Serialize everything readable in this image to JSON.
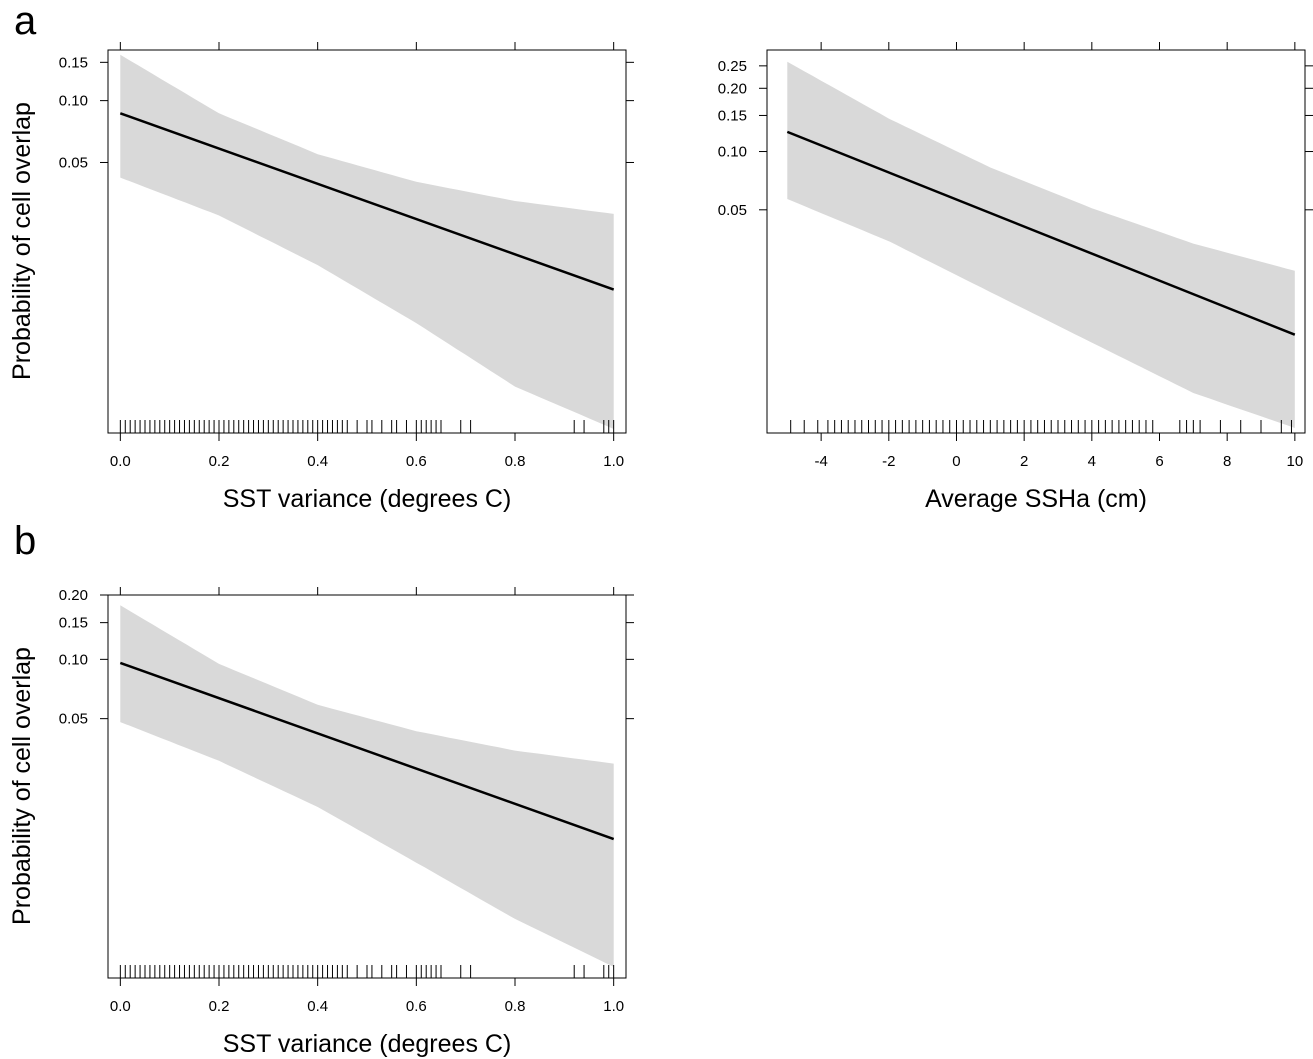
{
  "panel_letters": [
    "a",
    "b"
  ],
  "chart_data": [
    {
      "type": "line",
      "panel_letter": "a",
      "xlabel": "SST variance (degrees C)",
      "ylabel": "Probability of cell overlap",
      "y_scale": "logit",
      "xlim": [
        -0.025,
        1.025
      ],
      "ylim": [
        0.002,
        0.17
      ],
      "x_ticks": [
        0.0,
        0.2,
        0.4,
        0.6,
        0.8,
        1.0
      ],
      "x_tick_labels": [
        "0.0",
        "0.2",
        "0.4",
        "0.6",
        "0.8",
        "1.0"
      ],
      "y_ticks": [
        0.05,
        0.1,
        0.15
      ],
      "y_tick_labels": [
        "0.05",
        "0.10",
        "0.15"
      ],
      "fit": {
        "x": [
          0.0,
          1.0
        ],
        "y": [
          0.087,
          0.0112
        ]
      },
      "ci_lower": {
        "x": [
          0.0,
          0.2,
          0.4,
          0.6,
          0.8,
          1.0
        ],
        "y": [
          0.042,
          0.027,
          0.015,
          0.0075,
          0.0035,
          0.0021
        ]
      },
      "ci_upper": {
        "x": [
          0.0,
          0.2,
          0.4,
          0.6,
          0.8,
          1.0
        ],
        "y": [
          0.162,
          0.087,
          0.055,
          0.04,
          0.032,
          0.0275
        ]
      },
      "rug": [
        0.0,
        0.01,
        0.02,
        0.03,
        0.04,
        0.05,
        0.06,
        0.07,
        0.08,
        0.09,
        0.1,
        0.11,
        0.12,
        0.13,
        0.14,
        0.15,
        0.16,
        0.17,
        0.18,
        0.19,
        0.2,
        0.21,
        0.22,
        0.23,
        0.24,
        0.25,
        0.26,
        0.27,
        0.28,
        0.29,
        0.3,
        0.31,
        0.32,
        0.33,
        0.34,
        0.35,
        0.36,
        0.37,
        0.38,
        0.39,
        0.4,
        0.41,
        0.42,
        0.43,
        0.44,
        0.45,
        0.46,
        0.48,
        0.5,
        0.51,
        0.53,
        0.55,
        0.56,
        0.58,
        0.6,
        0.61,
        0.62,
        0.63,
        0.64,
        0.65,
        0.69,
        0.71,
        0.92,
        0.94,
        0.98,
        0.99,
        1.0
      ]
    },
    {
      "type": "line",
      "xlabel": "Average SSHa (cm)",
      "ylabel": "",
      "y_scale": "logit",
      "xlim": [
        -5.6,
        10.3
      ],
      "ylim": [
        0.003,
        0.29
      ],
      "x_ticks": [
        -4,
        -2,
        0,
        2,
        4,
        6,
        8,
        10
      ],
      "x_tick_labels": [
        "-4",
        "-2",
        "0",
        "2",
        "4",
        "6",
        "8",
        "10"
      ],
      "y_ticks": [
        0.05,
        0.1,
        0.15,
        0.2,
        0.25
      ],
      "y_tick_labels": [
        "0.05",
        "0.10",
        "0.15",
        "0.20",
        "0.25"
      ],
      "fit": {
        "x": [
          -5.0,
          10.0
        ],
        "y": [
          0.125,
          0.0105
        ]
      },
      "ci_lower": {
        "x": [
          -5,
          -2,
          1,
          4,
          7,
          10
        ],
        "y": [
          0.057,
          0.034,
          0.018,
          0.0095,
          0.005,
          0.0032
        ]
      },
      "ci_upper": {
        "x": [
          -5,
          -2,
          1,
          4,
          7,
          10
        ],
        "y": [
          0.26,
          0.145,
          0.083,
          0.051,
          0.033,
          0.0235
        ]
      },
      "rug": [
        -4.9,
        -4.5,
        -4.1,
        -3.8,
        -3.6,
        -3.4,
        -3.2,
        -3.0,
        -2.8,
        -2.6,
        -2.4,
        -2.2,
        -2.0,
        -1.8,
        -1.6,
        -1.4,
        -1.2,
        -1.0,
        -0.8,
        -0.6,
        -0.4,
        -0.2,
        0.0,
        0.2,
        0.4,
        0.6,
        0.8,
        1.0,
        1.2,
        1.4,
        1.6,
        1.8,
        2.0,
        2.2,
        2.4,
        2.6,
        2.8,
        3.0,
        3.2,
        3.4,
        3.6,
        3.8,
        4.0,
        4.2,
        4.4,
        4.6,
        4.8,
        5.0,
        5.2,
        5.4,
        5.6,
        5.8,
        6.6,
        6.8,
        7.0,
        7.2,
        7.8,
        8.4,
        9.0,
        9.6,
        9.9
      ]
    },
    {
      "type": "line",
      "panel_letter": "b",
      "xlabel": "SST variance (degrees C)",
      "ylabel": "Probability of cell overlap",
      "y_scale": "logit",
      "xlim": [
        -0.025,
        1.025
      ],
      "ylim": [
        0.002,
        0.2
      ],
      "x_ticks": [
        0.0,
        0.2,
        0.4,
        0.6,
        0.8,
        1.0
      ],
      "x_tick_labels": [
        "0.0",
        "0.2",
        "0.4",
        "0.6",
        "0.8",
        "1.0"
      ],
      "y_ticks": [
        0.05,
        0.1,
        0.15,
        0.2
      ],
      "y_tick_labels": [
        "0.05",
        "0.10",
        "0.15",
        "0.20"
      ],
      "fit": {
        "x": [
          0.0,
          1.0
        ],
        "y": [
          0.096,
          0.0114
        ]
      },
      "ci_lower": {
        "x": [
          0.0,
          0.2,
          0.4,
          0.6,
          0.8,
          1.0
        ],
        "y": [
          0.048,
          0.03,
          0.017,
          0.0085,
          0.0042,
          0.0023
        ]
      },
      "ci_upper": {
        "x": [
          0.0,
          0.2,
          0.4,
          0.6,
          0.8,
          1.0
        ],
        "y": [
          0.18,
          0.095,
          0.059,
          0.043,
          0.034,
          0.029
        ]
      },
      "rug": [
        0.0,
        0.01,
        0.02,
        0.03,
        0.04,
        0.05,
        0.06,
        0.07,
        0.08,
        0.09,
        0.1,
        0.11,
        0.12,
        0.13,
        0.14,
        0.15,
        0.16,
        0.17,
        0.18,
        0.19,
        0.2,
        0.21,
        0.22,
        0.23,
        0.24,
        0.25,
        0.26,
        0.27,
        0.28,
        0.29,
        0.3,
        0.31,
        0.32,
        0.33,
        0.34,
        0.35,
        0.36,
        0.37,
        0.38,
        0.39,
        0.4,
        0.41,
        0.42,
        0.43,
        0.44,
        0.45,
        0.46,
        0.48,
        0.5,
        0.51,
        0.53,
        0.55,
        0.56,
        0.58,
        0.6,
        0.61,
        0.62,
        0.63,
        0.64,
        0.65,
        0.69,
        0.71,
        0.92,
        0.94,
        0.98,
        0.99,
        1.0
      ]
    }
  ]
}
